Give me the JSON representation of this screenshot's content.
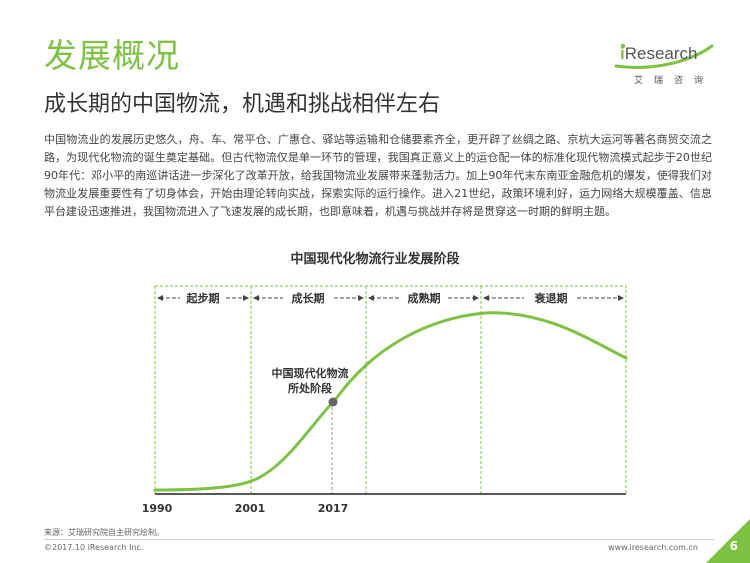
{
  "header": {
    "section_title": "发展概况",
    "subtitle": "成长期的中国物流，机遇和挑战相伴左右"
  },
  "logo": {
    "brand_prefix": "i",
    "brand_rest": "Research",
    "brand_sub": "艾瑞咨询"
  },
  "body_text": "中国物流业的发展历史悠久，舟、车、常平仓、广惠仓、驿站等运输和仓储要素齐全，更开辟了丝绸之路、京杭大运河等著名商贸交流之路，为现代化物流的诞生奠定基础。但古代物流仅是单一环节的管理，我国真正意义上的运仓配一体的标准化现代物流模式起步于20世纪90年代：邓小平的南巡讲话进一步深化了改革开放，给我国物流业发展带来蓬勃活力。加上90年代末东南亚金融危机的爆发，使得我们对物流业发展重要性有了切身体会，开始由理论转向实战，探索实际的运行操作。进入21世纪，政策环境利好，运力网络大规模覆盖、信息平台建设迅速推进，我国物流进入了飞速发展的成长期，也即意味着，机遇与挑战并存将是贯穿这一时期的鲜明主题。",
  "diagram": {
    "title": "中国现代化物流行业发展阶段",
    "stages": [
      {
        "label": "起步期"
      },
      {
        "label": "成长期"
      },
      {
        "label": "成熟期"
      },
      {
        "label": "衰退期"
      }
    ],
    "years": [
      "1990",
      "2001",
      "2017"
    ],
    "annotation_line1": "中国现代化物流",
    "annotation_line2": "所处阶段",
    "colors": {
      "curve": "#7dc242",
      "dashed": "#7dc242",
      "marker": "#666666",
      "axis": "#222222"
    }
  },
  "footer": {
    "source": "来源：艾瑞研究院自主研究绘制。",
    "copyright": "©2017.10 iResearch Inc.",
    "url": "www.iresearch.com.cn",
    "page_number": "6"
  }
}
